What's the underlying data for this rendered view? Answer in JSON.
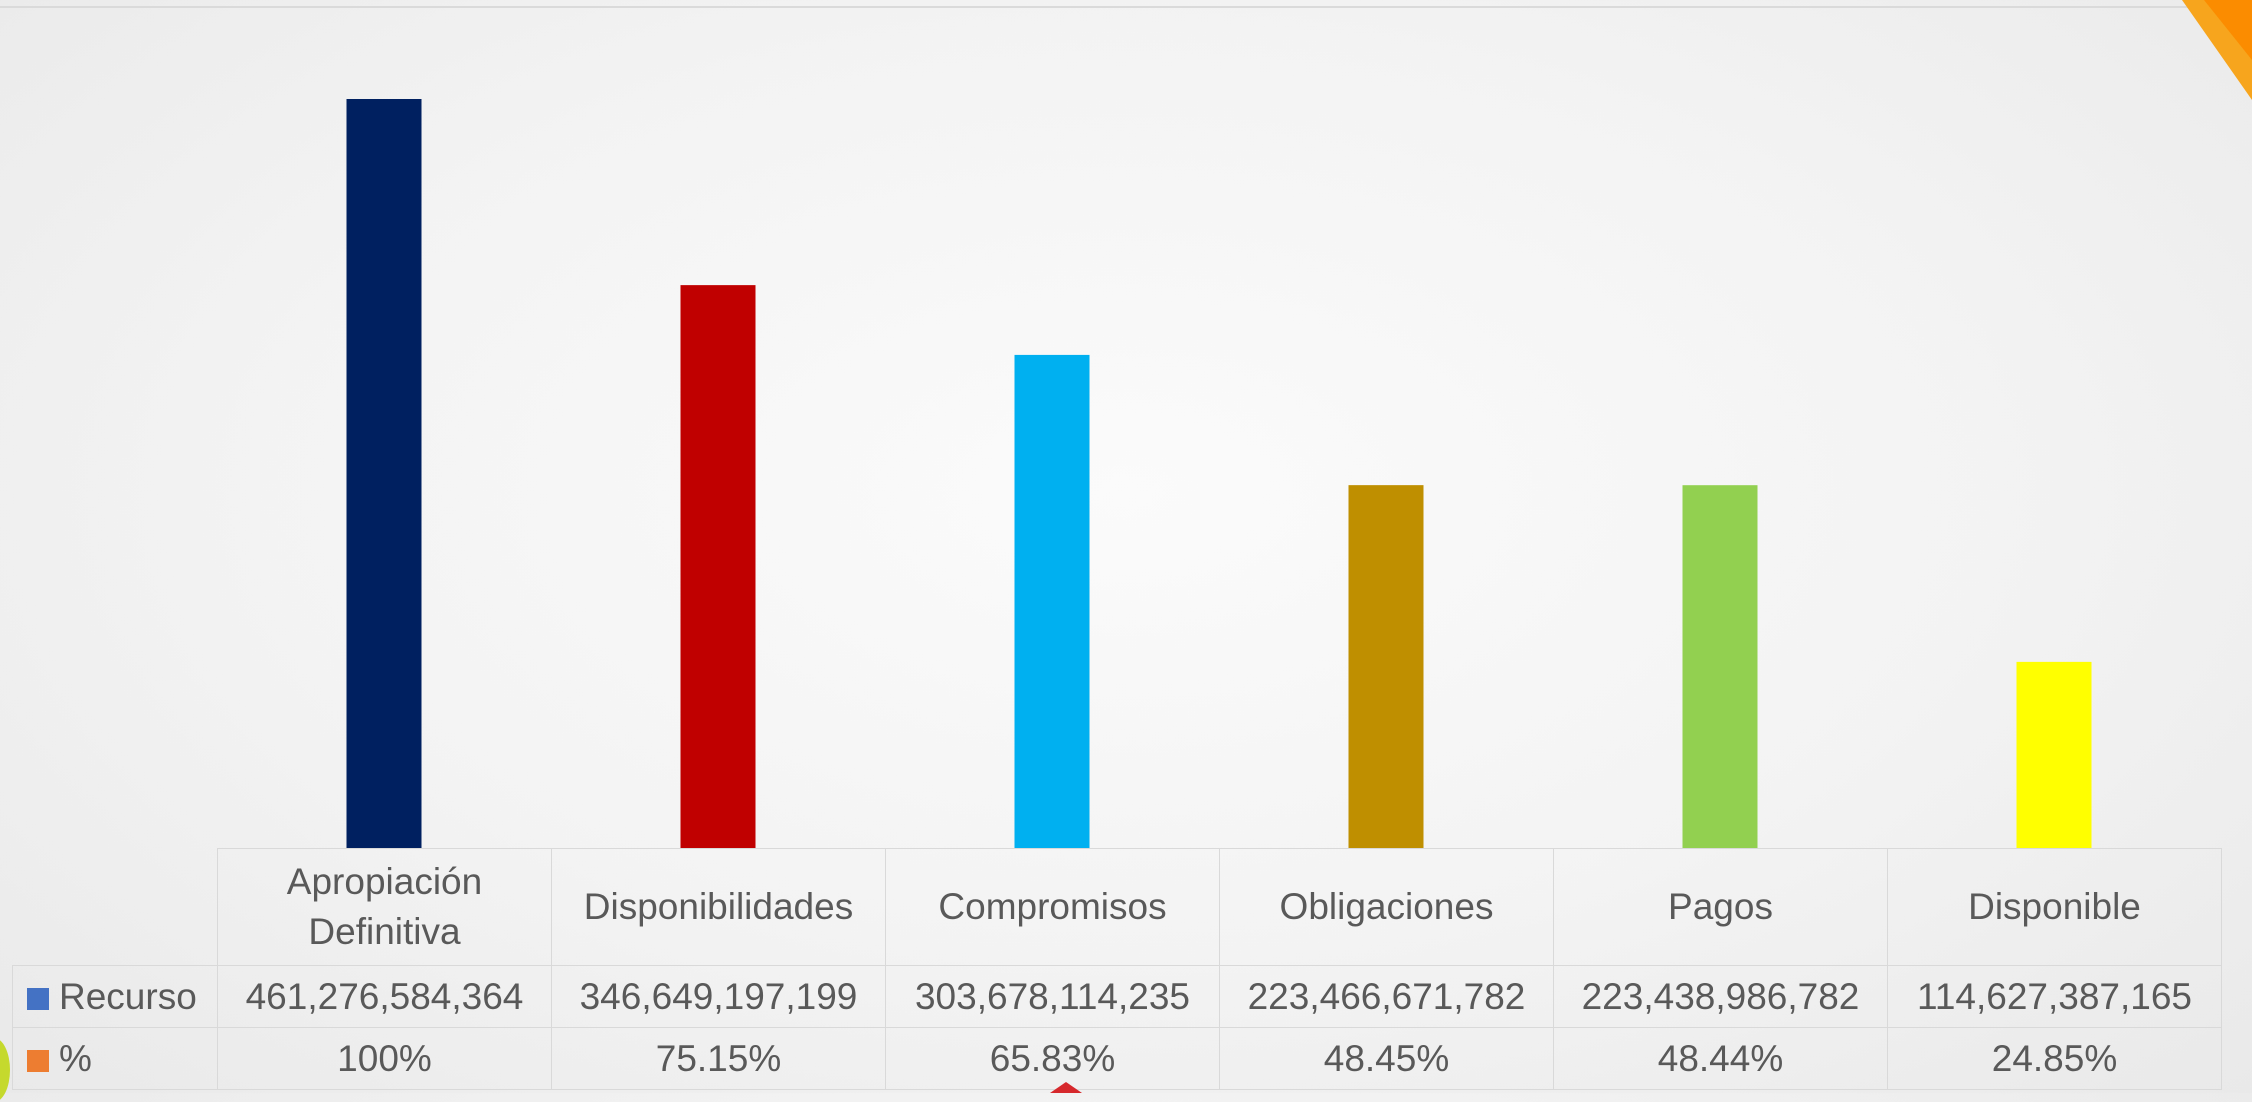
{
  "chart_data": {
    "type": "bar",
    "categories": [
      "Apropiación Definitiva",
      "Disponibilidades",
      "Compromisos",
      "Obligaciones",
      "Pagos",
      "Disponible"
    ],
    "series": [
      {
        "name": "Recurso",
        "values": [
          461276584364,
          346649197199,
          303678114235,
          223466671782,
          223438986782,
          114627387165
        ],
        "labels": [
          "461,276,584,364",
          "346,649,197,199",
          "303,678,114,235",
          "223,466,671,782",
          "223,438,986,782",
          "114,627,387,165"
        ],
        "legend_color": "#4472c4"
      },
      {
        "name": "%",
        "values": [
          100,
          75.15,
          65.83,
          48.45,
          48.44,
          24.85
        ],
        "labels": [
          "100%",
          "75.15%",
          "65.83%",
          "48.45%",
          "48.44%",
          "24.85%"
        ],
        "legend_color": "#ed7d31"
      }
    ],
    "bar_colors": [
      "#002060",
      "#c00000",
      "#00b0f0",
      "#bf8f00",
      "#92d050",
      "#ffff00"
    ],
    "ylim": [
      0,
      461276584364
    ],
    "grid": false,
    "legend_placement": "data-table"
  }
}
